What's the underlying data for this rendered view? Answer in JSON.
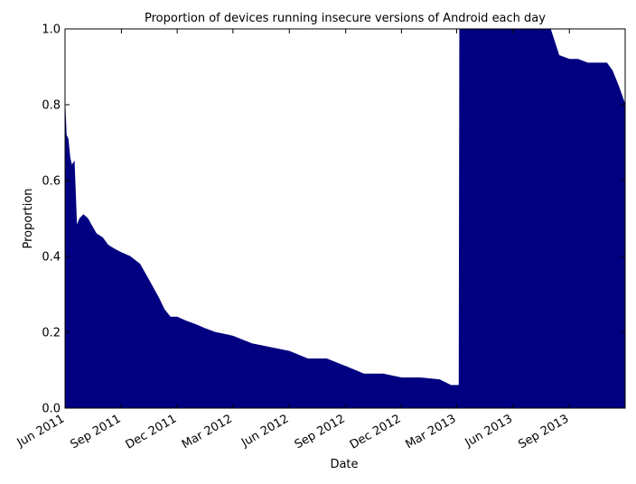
{
  "chart_data": {
    "type": "area",
    "title": "Proportion of devices running insecure versions of Android each day",
    "xlabel": "Date",
    "ylabel": "Proportion",
    "ylim": [
      0,
      1.0
    ],
    "xlim": [
      "2011-06-01",
      "2013-12-01"
    ],
    "grid": false,
    "legend": "none",
    "fill_color": "#000080",
    "x_ticks": [
      {
        "date": "2011-06-01",
        "label": "Jun 2011"
      },
      {
        "date": "2011-09-01",
        "label": "Sep 2011"
      },
      {
        "date": "2011-12-01",
        "label": "Dec 2011"
      },
      {
        "date": "2012-03-01",
        "label": "Mar 2012"
      },
      {
        "date": "2012-06-01",
        "label": "Jun 2012"
      },
      {
        "date": "2012-09-01",
        "label": "Sep 2012"
      },
      {
        "date": "2012-12-01",
        "label": "Dec 2012"
      },
      {
        "date": "2013-03-01",
        "label": "Mar 2013"
      },
      {
        "date": "2013-06-01",
        "label": "Jun 2013"
      },
      {
        "date": "2013-09-01",
        "label": "Sep 2013"
      }
    ],
    "y_ticks": [
      {
        "value": 0.0,
        "label": "0.0"
      },
      {
        "value": 0.2,
        "label": "0.2"
      },
      {
        "value": 0.4,
        "label": "0.4"
      },
      {
        "value": 0.6,
        "label": "0.6"
      },
      {
        "value": 0.8,
        "label": "0.8"
      },
      {
        "value": 1.0,
        "label": "1.0"
      }
    ],
    "series": [
      {
        "x": [
          "2011-06-01",
          "2011-06-03",
          "2011-06-06",
          "2011-06-09",
          "2011-06-12",
          "2011-06-16",
          "2011-06-20",
          "2011-06-25",
          "2011-07-01",
          "2011-07-08",
          "2011-07-15",
          "2011-07-22",
          "2011-08-01",
          "2011-08-10",
          "2011-08-20",
          "2011-09-01",
          "2011-09-15",
          "2011-10-01",
          "2011-10-15",
          "2011-11-01",
          "2011-11-10",
          "2011-11-20",
          "2011-12-01",
          "2011-12-15",
          "2012-01-01",
          "2012-01-15",
          "2012-02-01",
          "2012-03-01",
          "2012-04-01",
          "2012-05-01",
          "2012-06-01",
          "2012-07-01",
          "2012-08-01",
          "2012-09-01",
          "2012-10-01",
          "2012-11-01",
          "2012-12-01",
          "2013-01-01",
          "2013-02-01",
          "2013-02-20",
          "2013-03-05",
          "2013-03-06",
          "2013-04-01",
          "2013-05-01",
          "2013-06-01",
          "2013-07-01",
          "2013-08-01",
          "2013-08-05",
          "2013-08-15",
          "2013-09-01",
          "2013-09-15",
          "2013-10-01",
          "2013-10-15",
          "2013-11-01",
          "2013-11-10",
          "2013-11-20",
          "2013-12-01"
        ],
        "y": [
          0.8,
          0.72,
          0.71,
          0.66,
          0.64,
          0.65,
          0.48,
          0.5,
          0.51,
          0.5,
          0.48,
          0.46,
          0.45,
          0.43,
          0.42,
          0.41,
          0.4,
          0.38,
          0.34,
          0.29,
          0.26,
          0.24,
          0.24,
          0.23,
          0.22,
          0.21,
          0.2,
          0.19,
          0.17,
          0.16,
          0.15,
          0.13,
          0.13,
          0.11,
          0.09,
          0.09,
          0.08,
          0.08,
          0.075,
          0.06,
          0.06,
          1.0,
          1.0,
          1.0,
          1.0,
          1.0,
          1.0,
          0.98,
          0.93,
          0.92,
          0.92,
          0.91,
          0.91,
          0.91,
          0.89,
          0.85,
          0.8
        ]
      }
    ]
  }
}
